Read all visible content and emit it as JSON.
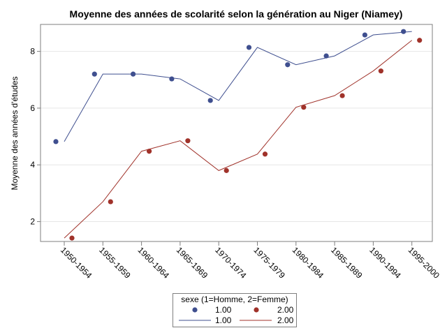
{
  "chart_data": {
    "type": "scatter",
    "title": "Moyenne des années de scolarité selon la génération au Niger (Niamey)",
    "xlabel": "",
    "ylabel": "Moyenne des années d'études",
    "categories": [
      "1950-1954",
      "1955-1959",
      "1960-1964",
      "1965-1969",
      "1970-1974",
      "1975-1979",
      "1980-1984",
      "1985-1989",
      "1990-1994",
      "1995-2000"
    ],
    "ylim": [
      1.3,
      8.95
    ],
    "yticks": [
      2,
      4,
      6,
      8
    ],
    "grid": "horizontal",
    "legend_position": "bottom",
    "legend_title": "sexe (1=Homme, 2=Femme)",
    "series": [
      {
        "name": "1.00",
        "color": "#3f4f8f",
        "points": [
          4.82,
          7.2,
          7.2,
          7.03,
          6.27,
          8.14,
          7.53,
          7.84,
          8.58,
          8.7
        ],
        "line": [
          4.82,
          7.2,
          7.2,
          7.03,
          6.27,
          8.14,
          7.53,
          7.84,
          8.58,
          8.7
        ]
      },
      {
        "name": "2.00",
        "color": "#a0322a",
        "points": [
          1.42,
          2.7,
          4.48,
          4.85,
          3.8,
          4.38,
          6.03,
          6.44,
          7.31,
          8.39
        ],
        "line": [
          1.42,
          2.7,
          4.48,
          4.85,
          3.8,
          4.38,
          6.03,
          6.44,
          7.31,
          8.39
        ]
      }
    ]
  }
}
